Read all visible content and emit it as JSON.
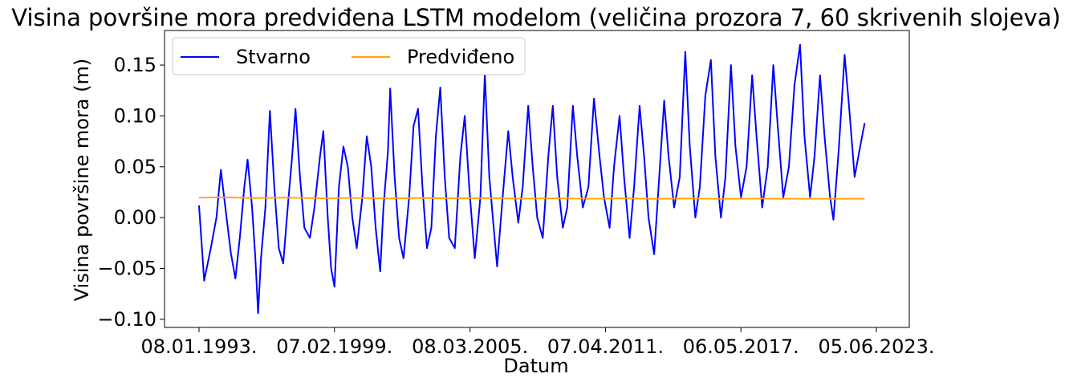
{
  "chart_data": {
    "type": "line",
    "title": "Visina površine mora predviđena LSTM modelom (veličina prozora 7, 60 skrivenih slojeva)",
    "xlabel": "Datum",
    "ylabel": "Visina površine mora (m)",
    "x_ticks": [
      "08.01.1993.",
      "07.02.1999.",
      "08.03.2005.",
      "07.04.2011.",
      "06.05.2017.",
      "05.06.2023."
    ],
    "x_range": [
      "08.01.1993.",
      "05.06.2023."
    ],
    "y_ticks": [
      -0.1,
      -0.05,
      0.0,
      0.05,
      0.1,
      0.15
    ],
    "y_tick_labels": [
      "−0.10",
      "−0.05",
      "0.00",
      "0.05",
      "0.10",
      "0.15"
    ],
    "ylim": [
      -0.108,
      0.184
    ],
    "grid": false,
    "legend": {
      "placement": "top-left",
      "columns": 2
    },
    "series": [
      {
        "name": "Stvarno",
        "color": "#0000ff",
        "points": [
          [
            "1993.02",
            0.012
          ],
          [
            "1993.25",
            -0.062
          ],
          [
            "1993.55",
            -0.03
          ],
          [
            "1993.80",
            0.0
          ],
          [
            "1994.00",
            0.047
          ],
          [
            "1994.20",
            0.01
          ],
          [
            "1994.45",
            -0.035
          ],
          [
            "1994.65",
            -0.06
          ],
          [
            "1994.85",
            -0.02
          ],
          [
            "1995.05",
            0.03
          ],
          [
            "1995.20",
            0.057
          ],
          [
            "1995.40",
            0.01
          ],
          [
            "1995.55",
            -0.04
          ],
          [
            "1995.67",
            -0.094
          ],
          [
            "1995.80",
            -0.04
          ],
          [
            "1996.00",
            0.01
          ],
          [
            "1996.20",
            0.105
          ],
          [
            "1996.40",
            0.03
          ],
          [
            "1996.60",
            -0.03
          ],
          [
            "1996.80",
            -0.045
          ],
          [
            "1997.00",
            0.01
          ],
          [
            "1997.20",
            0.06
          ],
          [
            "1997.35",
            0.107
          ],
          [
            "1997.55",
            0.04
          ],
          [
            "1997.75",
            -0.01
          ],
          [
            "1998.00",
            -0.02
          ],
          [
            "1998.20",
            0.01
          ],
          [
            "1998.45",
            0.06
          ],
          [
            "1998.60",
            0.085
          ],
          [
            "1998.80",
            0.0
          ],
          [
            "1998.95",
            -0.05
          ],
          [
            "1999.10",
            -0.068
          ],
          [
            "1999.30",
            0.03
          ],
          [
            "1999.50",
            0.07
          ],
          [
            "1999.70",
            0.05
          ],
          [
            "1999.90",
            0.0
          ],
          [
            "2000.10",
            -0.03
          ],
          [
            "2000.35",
            0.02
          ],
          [
            "2000.55",
            0.08
          ],
          [
            "2000.75",
            0.05
          ],
          [
            "2000.95",
            -0.01
          ],
          [
            "2001.15",
            -0.053
          ],
          [
            "2001.30",
            0.01
          ],
          [
            "2001.50",
            0.065
          ],
          [
            "2001.60",
            0.127
          ],
          [
            "2001.80",
            0.04
          ],
          [
            "2002.00",
            -0.02
          ],
          [
            "2002.20",
            -0.04
          ],
          [
            "2002.45",
            0.02
          ],
          [
            "2002.65",
            0.09
          ],
          [
            "2002.85",
            0.107
          ],
          [
            "2003.05",
            0.03
          ],
          [
            "2003.25",
            -0.03
          ],
          [
            "2003.45",
            -0.01
          ],
          [
            "2003.65",
            0.08
          ],
          [
            "2003.85",
            0.128
          ],
          [
            "2004.05",
            0.04
          ],
          [
            "2004.25",
            -0.02
          ],
          [
            "2004.50",
            -0.03
          ],
          [
            "2004.75",
            0.06
          ],
          [
            "2004.95",
            0.1
          ],
          [
            "2005.15",
            0.03
          ],
          [
            "2005.40",
            -0.04
          ],
          [
            "2005.65",
            0.02
          ],
          [
            "2005.85",
            0.142
          ],
          [
            "2006.05",
            0.04
          ],
          [
            "2006.25",
            -0.01
          ],
          [
            "2006.40",
            -0.048
          ],
          [
            "2006.65",
            0.02
          ],
          [
            "2006.90",
            0.085
          ],
          [
            "2007.10",
            0.04
          ],
          [
            "2007.35",
            -0.005
          ],
          [
            "2007.55",
            0.03
          ],
          [
            "2007.80",
            0.11
          ],
          [
            "2008.00",
            0.05
          ],
          [
            "2008.20",
            0.0
          ],
          [
            "2008.45",
            -0.02
          ],
          [
            "2008.70",
            0.06
          ],
          [
            "2008.90",
            0.11
          ],
          [
            "2009.10",
            0.04
          ],
          [
            "2009.35",
            -0.01
          ],
          [
            "2009.55",
            0.01
          ],
          [
            "2009.80",
            0.11
          ],
          [
            "2010.00",
            0.06
          ],
          [
            "2010.25",
            0.01
          ],
          [
            "2010.50",
            0.03
          ],
          [
            "2010.75",
            0.117
          ],
          [
            "2011.00",
            0.06
          ],
          [
            "2011.20",
            0.02
          ],
          [
            "2011.45",
            -0.01
          ],
          [
            "2011.65",
            0.05
          ],
          [
            "2011.90",
            0.1
          ],
          [
            "2012.10",
            0.04
          ],
          [
            "2012.35",
            -0.02
          ],
          [
            "2012.55",
            0.03
          ],
          [
            "2012.80",
            0.11
          ],
          [
            "2013.00",
            0.06
          ],
          [
            "2013.20",
            0.0
          ],
          [
            "2013.45",
            -0.036
          ],
          [
            "2013.65",
            0.03
          ],
          [
            "2013.90",
            0.115
          ],
          [
            "2014.10",
            0.06
          ],
          [
            "2014.35",
            0.01
          ],
          [
            "2014.60",
            0.04
          ],
          [
            "2014.85",
            0.163
          ],
          [
            "2015.05",
            0.07
          ],
          [
            "2015.30",
            0.0
          ],
          [
            "2015.50",
            0.03
          ],
          [
            "2015.75",
            0.12
          ],
          [
            "2016.00",
            0.155
          ],
          [
            "2016.20",
            0.06
          ],
          [
            "2016.45",
            0.0
          ],
          [
            "2016.65",
            0.04
          ],
          [
            "2016.90",
            0.15
          ],
          [
            "2017.10",
            0.07
          ],
          [
            "2017.35",
            0.02
          ],
          [
            "2017.60",
            0.05
          ],
          [
            "2017.85",
            0.14
          ],
          [
            "2018.05",
            0.08
          ],
          [
            "2018.30",
            0.01
          ],
          [
            "2018.55",
            0.05
          ],
          [
            "2018.80",
            0.15
          ],
          [
            "2019.00",
            0.09
          ],
          [
            "2019.25",
            0.02
          ],
          [
            "2019.50",
            0.05
          ],
          [
            "2019.75",
            0.13
          ],
          [
            "2020.00",
            0.17
          ],
          [
            "2020.20",
            0.08
          ],
          [
            "2020.45",
            0.02
          ],
          [
            "2020.65",
            0.06
          ],
          [
            "2020.90",
            0.14
          ],
          [
            "2021.10",
            0.08
          ],
          [
            "2021.35",
            0.02
          ],
          [
            "2021.50",
            -0.002
          ],
          [
            "2021.75",
            0.07
          ],
          [
            "2022.00",
            0.16
          ],
          [
            "2022.20",
            0.11
          ],
          [
            "2022.45",
            0.04
          ],
          [
            "2022.70",
            0.07
          ],
          [
            "2022.90",
            0.093
          ]
        ]
      },
      {
        "name": "Predviđeno",
        "color": "#ffa500",
        "points": [
          [
            "1993.02",
            0.0195
          ],
          [
            "1994.00",
            0.02
          ],
          [
            "1995.50",
            0.0192
          ],
          [
            "1997.00",
            0.0196
          ],
          [
            "1998.50",
            0.019
          ],
          [
            "2000.00",
            0.0194
          ],
          [
            "2001.50",
            0.0188
          ],
          [
            "2003.00",
            0.0193
          ],
          [
            "2004.50",
            0.0189
          ],
          [
            "2006.00",
            0.0191
          ],
          [
            "2007.50",
            0.0187
          ],
          [
            "2009.00",
            0.019
          ],
          [
            "2010.50",
            0.0186
          ],
          [
            "2012.00",
            0.0189
          ],
          [
            "2013.50",
            0.0185
          ],
          [
            "2015.00",
            0.0188
          ],
          [
            "2016.50",
            0.0185
          ],
          [
            "2018.00",
            0.0187
          ],
          [
            "2019.50",
            0.0185
          ],
          [
            "2021.00",
            0.0186
          ],
          [
            "2022.90",
            0.0185
          ]
        ]
      }
    ]
  }
}
